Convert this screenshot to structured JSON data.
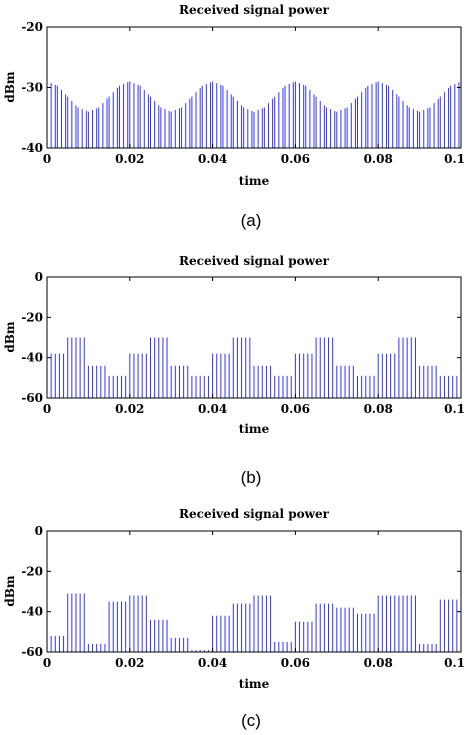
{
  "chart_data": [
    {
      "type": "bar",
      "title": "Received signal power",
      "xlabel": "time",
      "ylabel": "dBm",
      "xlim": [
        0,
        0.1
      ],
      "ylim": [
        -40,
        -20
      ],
      "xticks": [
        "0",
        "0.02",
        "0.04",
        "0.06",
        "0.08",
        "0.1"
      ],
      "yticks": [
        "-20",
        "-30",
        "-40"
      ],
      "caption": "(a)",
      "color": "#3333ff",
      "series_x": [
        0.0,
        0.0025,
        0.005,
        0.0075,
        0.01,
        0.0125,
        0.015,
        0.0175,
        0.02,
        0.0225,
        0.025,
        0.0275,
        0.03,
        0.0325,
        0.035,
        0.0375,
        0.04,
        0.0425,
        0.045,
        0.0475,
        0.05,
        0.0525,
        0.055,
        0.0575,
        0.06,
        0.0625,
        0.065,
        0.0675,
        0.07,
        0.0725,
        0.075,
        0.0775,
        0.08,
        0.0825,
        0.085,
        0.0875,
        0.09,
        0.0925,
        0.095,
        0.0975,
        0.1
      ],
      "series_y": [
        -29,
        -29.7,
        -31.5,
        -33.3,
        -34,
        -33.3,
        -31.5,
        -29.7,
        -29,
        -29.7,
        -31.5,
        -33.3,
        -34,
        -33.3,
        -31.5,
        -29.7,
        -29,
        -29.7,
        -31.5,
        -33.3,
        -34,
        -33.3,
        -31.5,
        -29.7,
        -29,
        -29.7,
        -31.5,
        -33.3,
        -34,
        -33.3,
        -31.5,
        -29.7,
        -29,
        -29.7,
        -31.5,
        -33.3,
        -34,
        -33.3,
        -31.5,
        -29.7,
        -29
      ]
    },
    {
      "type": "bar",
      "title": "Received signal power",
      "xlabel": "time",
      "ylabel": "dBm",
      "xlim": [
        0,
        0.1
      ],
      "ylim": [
        -60,
        0
      ],
      "xticks": [
        "0",
        "0.02",
        "0.04",
        "0.06",
        "0.08",
        "0.1"
      ],
      "yticks": [
        "0",
        "-20",
        "-40",
        "-60"
      ],
      "caption": "(b)",
      "color": "#3333ff",
      "steps": [
        {
          "x0": 0.0,
          "x1": 0.005,
          "y": -38
        },
        {
          "x0": 0.005,
          "x1": 0.01,
          "y": -30
        },
        {
          "x0": 0.01,
          "x1": 0.015,
          "y": -44
        },
        {
          "x0": 0.015,
          "x1": 0.02,
          "y": -49
        },
        {
          "x0": 0.02,
          "x1": 0.025,
          "y": -38
        },
        {
          "x0": 0.025,
          "x1": 0.03,
          "y": -30
        },
        {
          "x0": 0.03,
          "x1": 0.035,
          "y": -44
        },
        {
          "x0": 0.035,
          "x1": 0.04,
          "y": -49
        },
        {
          "x0": 0.04,
          "x1": 0.045,
          "y": -38
        },
        {
          "x0": 0.045,
          "x1": 0.05,
          "y": -30
        },
        {
          "x0": 0.05,
          "x1": 0.055,
          "y": -44
        },
        {
          "x0": 0.055,
          "x1": 0.06,
          "y": -49
        },
        {
          "x0": 0.06,
          "x1": 0.065,
          "y": -38
        },
        {
          "x0": 0.065,
          "x1": 0.07,
          "y": -30
        },
        {
          "x0": 0.07,
          "x1": 0.075,
          "y": -44
        },
        {
          "x0": 0.075,
          "x1": 0.08,
          "y": -49
        },
        {
          "x0": 0.08,
          "x1": 0.085,
          "y": -38
        },
        {
          "x0": 0.085,
          "x1": 0.09,
          "y": -30
        },
        {
          "x0": 0.09,
          "x1": 0.095,
          "y": -44
        },
        {
          "x0": 0.095,
          "x1": 0.1,
          "y": -49
        }
      ]
    },
    {
      "type": "bar",
      "title": "Received signal power",
      "xlabel": "time",
      "ylabel": "dBm",
      "xlim": [
        0,
        0.1
      ],
      "ylim": [
        -60,
        0
      ],
      "xticks": [
        "0",
        "0.02",
        "0.04",
        "0.06",
        "0.08",
        "0.1"
      ],
      "yticks": [
        "0",
        "-20",
        "-40",
        "-60"
      ],
      "caption": "(c)",
      "color": "#3333ff",
      "steps": [
        {
          "x0": 0.0,
          "x1": 0.005,
          "y": -52
        },
        {
          "x0": 0.005,
          "x1": 0.01,
          "y": -31
        },
        {
          "x0": 0.01,
          "x1": 0.015,
          "y": -56
        },
        {
          "x0": 0.015,
          "x1": 0.02,
          "y": -35
        },
        {
          "x0": 0.02,
          "x1": 0.025,
          "y": -32
        },
        {
          "x0": 0.025,
          "x1": 0.03,
          "y": -44
        },
        {
          "x0": 0.03,
          "x1": 0.035,
          "y": -53
        },
        {
          "x0": 0.035,
          "x1": 0.04,
          "y": -59
        },
        {
          "x0": 0.04,
          "x1": 0.045,
          "y": -42
        },
        {
          "x0": 0.045,
          "x1": 0.05,
          "y": -36
        },
        {
          "x0": 0.05,
          "x1": 0.055,
          "y": -32
        },
        {
          "x0": 0.055,
          "x1": 0.06,
          "y": -55
        },
        {
          "x0": 0.06,
          "x1": 0.065,
          "y": -45
        },
        {
          "x0": 0.065,
          "x1": 0.07,
          "y": -36
        },
        {
          "x0": 0.07,
          "x1": 0.075,
          "y": -38
        },
        {
          "x0": 0.075,
          "x1": 0.08,
          "y": -41
        },
        {
          "x0": 0.08,
          "x1": 0.085,
          "y": -32
        },
        {
          "x0": 0.085,
          "x1": 0.09,
          "y": -32
        },
        {
          "x0": 0.09,
          "x1": 0.095,
          "y": -56
        },
        {
          "x0": 0.095,
          "x1": 0.1,
          "y": -34
        }
      ]
    }
  ]
}
